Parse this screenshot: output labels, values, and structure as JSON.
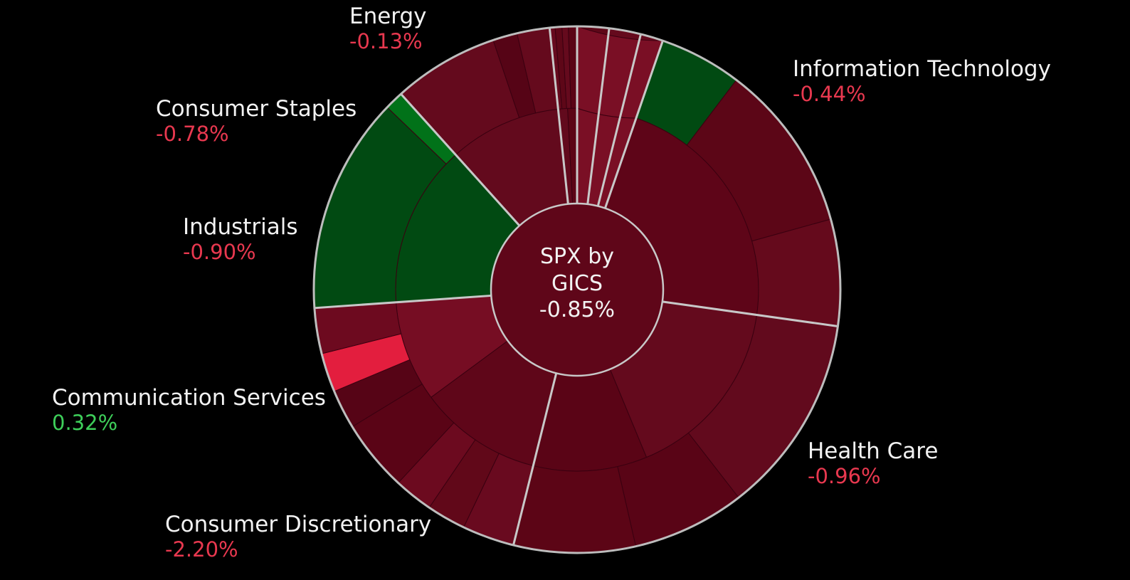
{
  "chart_data": {
    "type": "sunburst",
    "center": {
      "line1": "SPX by",
      "line2": "GICS",
      "value": "-0.85%",
      "value_pct": -0.85
    },
    "sectors": [
      {
        "name": "Information Technology",
        "label": "-0.44%",
        "value_pct": -0.44,
        "color": "#5e0518",
        "ring2": [
          {
            "color": "#5e0518"
          }
        ],
        "ring3": [
          {
            "color": "#014a12"
          },
          {
            "color": "#5c0617"
          },
          {
            "color": "#650a1c"
          }
        ]
      },
      {
        "name": "Health Care",
        "label": "-0.96%",
        "value_pct": -0.96,
        "color": "#640a1d",
        "ring2": [
          {
            "color": "#640a1d"
          },
          {
            "color": "#5a0416"
          }
        ],
        "ring3": [
          {
            "color": "#620a1d"
          },
          {
            "color": "#590416"
          },
          {
            "color": "#5c0516"
          }
        ]
      },
      {
        "name": "Consumer Discretionary",
        "label": "-2.20%",
        "value_pct": -2.2,
        "color": "#6a0a20",
        "ring2": [
          {
            "color": "#5f0619"
          },
          {
            "color": "#760d23"
          }
        ],
        "ring3": [
          {
            "color": "#690a1f"
          },
          {
            "color": "#610819"
          },
          {
            "color": "#6c0a1f"
          },
          {
            "color": "#5a0416"
          },
          {
            "color": "#560416"
          },
          {
            "color": "#e31e3e"
          },
          {
            "color": "#6d0a1f"
          }
        ]
      },
      {
        "name": "Communication Services",
        "label": "0.32%",
        "value_pct": 0.32,
        "color": "#014a12",
        "ring2": [
          {
            "color": "#014a12"
          }
        ],
        "ring3": [
          {
            "color": "#014a12"
          },
          {
            "color": "#017219"
          }
        ]
      },
      {
        "name": "Industrials",
        "label": "-0.90%",
        "value_pct": -0.9,
        "color": "#630a1d",
        "ring2": [
          {
            "color": "#630a1d"
          }
        ],
        "ring3": [
          {
            "color": "#640a1d"
          },
          {
            "color": "#560416"
          },
          {
            "color": "#650a1d"
          }
        ]
      },
      {
        "name": "Consumer Staples",
        "label": "-0.78%",
        "value_pct": -0.78,
        "color": "#620a1d",
        "ring2": [
          {
            "color": "#620a1d"
          },
          {
            "color": "#5c0516"
          }
        ],
        "ring3": [
          {
            "color": "#670a1e"
          },
          {
            "color": "#5e0718"
          },
          {
            "color": "#650a1d"
          },
          {
            "color": "#5a0416"
          }
        ]
      },
      {
        "name": "Energy",
        "label": "-0.13%",
        "value_pct": -0.13,
        "color": "#650a1d",
        "ring2": [
          {
            "color": "#650a1d"
          }
        ],
        "ring3": [
          {
            "color": "#5e0718"
          }
        ]
      },
      {
        "name": "",
        "label": "",
        "color": "#640a1d",
        "ring2": [
          {
            "color": "#640a1d"
          }
        ],
        "ring3": [
          {
            "color": "#650a1d"
          }
        ]
      },
      {
        "name": "",
        "label": "",
        "color": "#610819",
        "ring2": [
          {
            "color": "#610819"
          }
        ],
        "ring3": [
          {
            "color": "#640a1d"
          }
        ]
      },
      {
        "name": "",
        "label": "",
        "color": "#7a0f25",
        "ring2": [
          {
            "color": "#7a0f25"
          }
        ],
        "ring3": [
          {
            "color": "#7a0f25"
          }
        ]
      }
    ],
    "colors": {
      "background": "#000000",
      "name_text": "#f2f2f2",
      "negative_text": "#e8384f",
      "positive_text": "#3ecf5a",
      "separator": "#c8c8c8"
    }
  }
}
